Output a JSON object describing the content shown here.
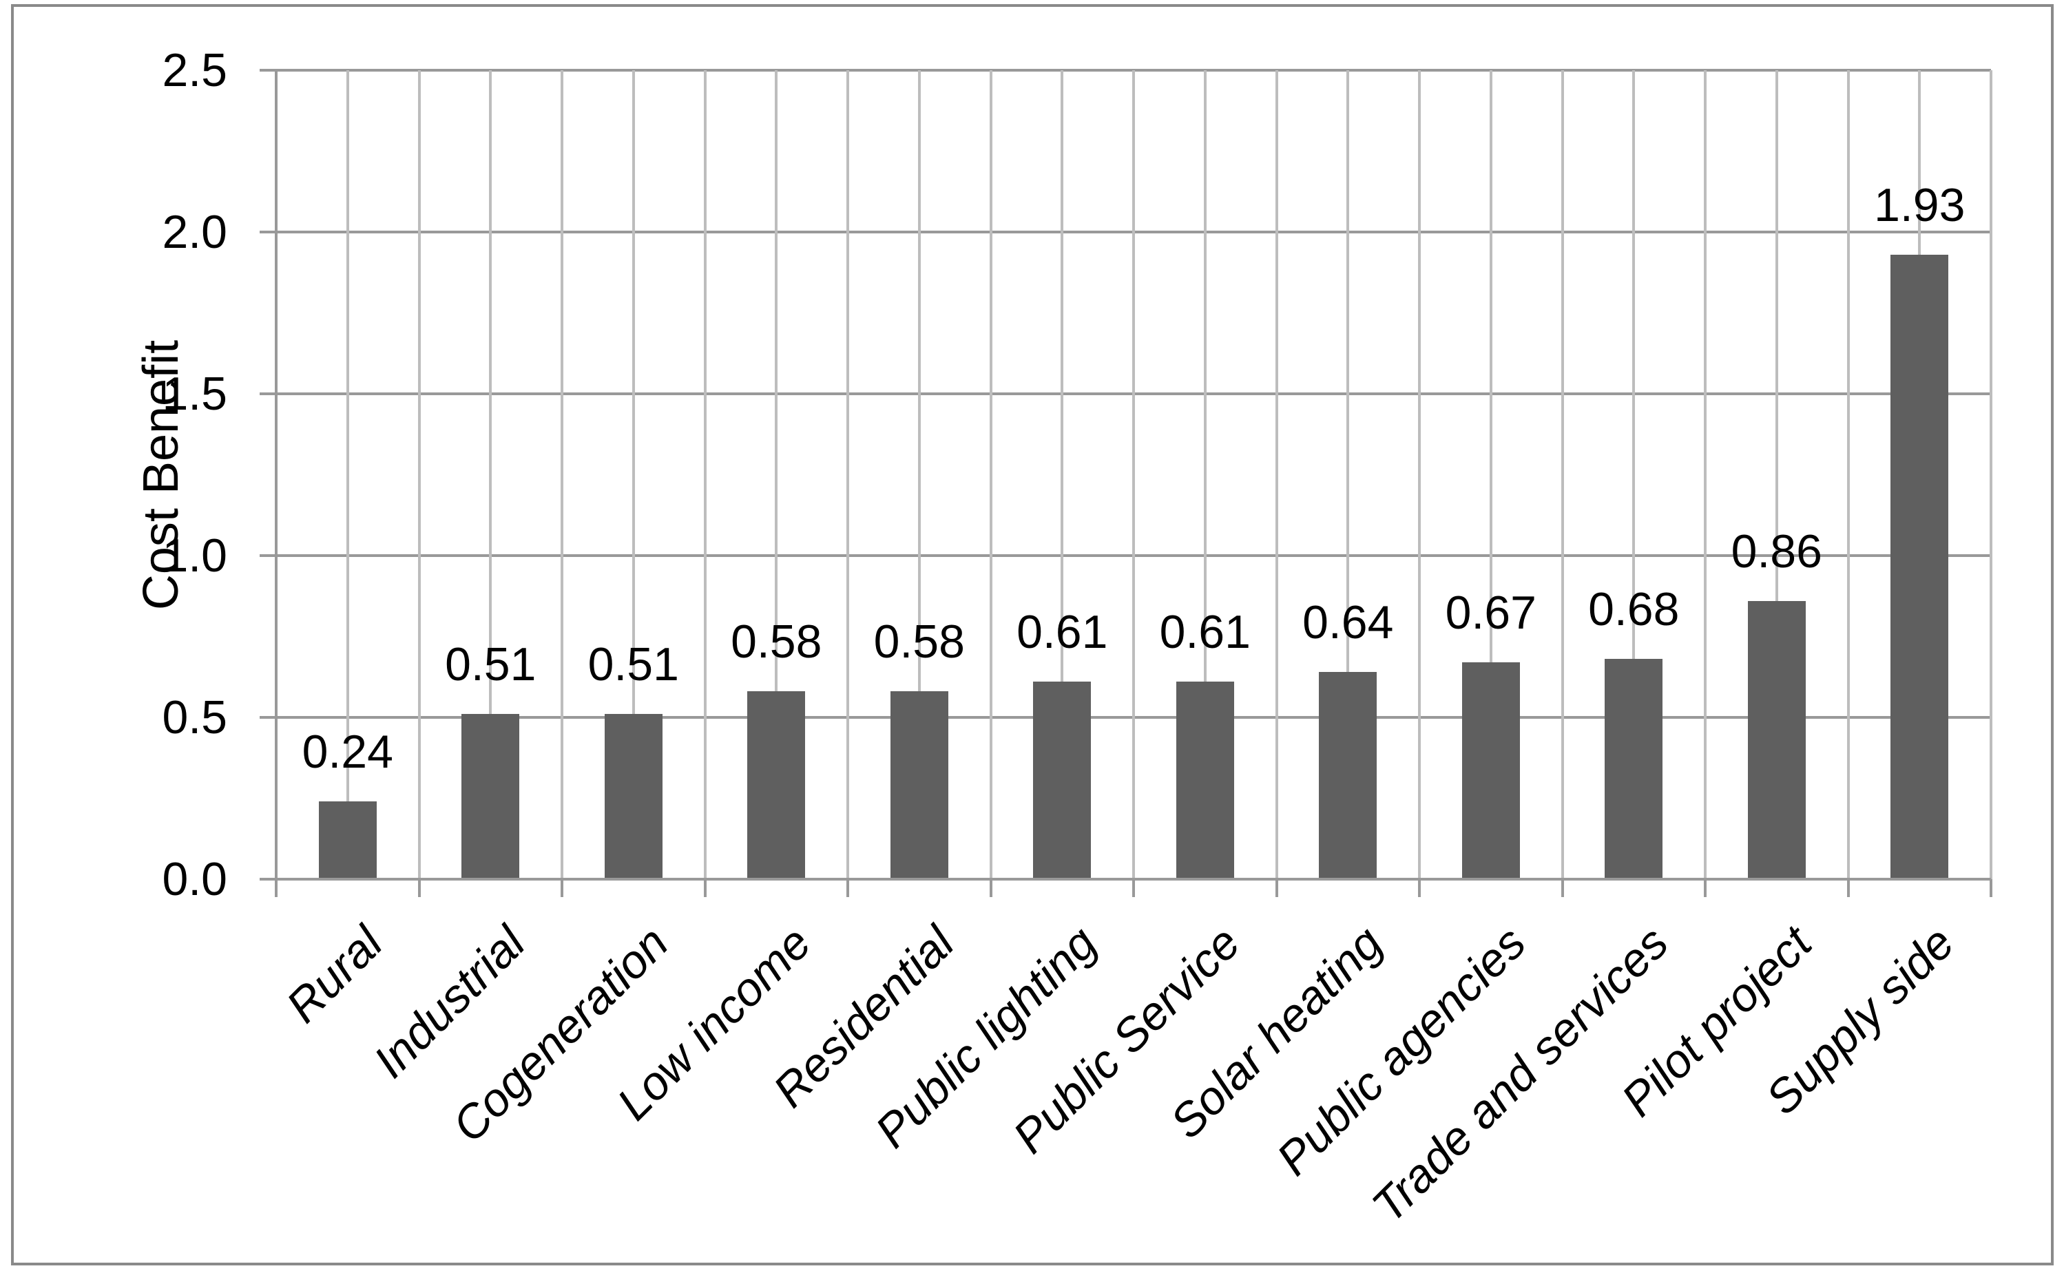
{
  "frame": {
    "border_color": "#8a8a8a",
    "background": "#ffffff"
  },
  "chart_data": {
    "type": "bar",
    "title": "",
    "categories": [
      "Rural",
      "Industrial",
      "Cogeneration",
      "Low income",
      "Residential",
      "Public lighting",
      "Public Service",
      "Solar heating",
      "Public agencies",
      "Trade and services",
      "Pilot project",
      "Supply side"
    ],
    "values": [
      0.24,
      0.51,
      0.51,
      0.58,
      0.58,
      0.61,
      0.61,
      0.64,
      0.67,
      0.68,
      0.86,
      1.93
    ],
    "data_labels": [
      "0.24",
      "0.51",
      "0.51",
      "0.58",
      "0.58",
      "0.61",
      "0.61",
      "0.64",
      "0.67",
      "0.68",
      "0.86",
      "1.93"
    ],
    "xlabel": "",
    "ylabel": "Cost Benefit",
    "ylim": [
      0,
      2.5
    ],
    "ytick_step": 0.5,
    "ytick_labels": [
      "0.0",
      "0.5",
      "1.0",
      "1.5",
      "2.0",
      "2.5"
    ],
    "grid": "horizontal-major and vertical-half-category",
    "legend": "none",
    "bar_color": "#5f5f5f",
    "h_gridline_color": "#999999",
    "v_gridline_color": "#bdbdbd",
    "axis_color": "#999999",
    "text_color": "#000000",
    "category_label_rotation_deg": 45,
    "category_label_style": "italic"
  }
}
